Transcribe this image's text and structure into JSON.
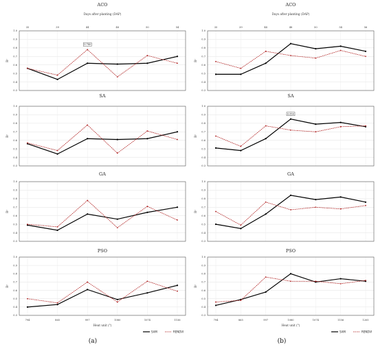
{
  "figure": {
    "left_label": "(a)",
    "right_label": "(b)",
    "top_axis_label": "Days after planting (DAP)",
    "bottom_axis_label": "Heat unit (°)",
    "y_axis_label": "R²",
    "colors": {
      "SAM": "#000000",
      "RENDVI": "#b02020"
    }
  },
  "chart_data": [
    {
      "type": "line",
      "title": "ACO",
      "column": "left",
      "row": 0,
      "categories": [
        "794",
        "865",
        "997",
        "1080",
        "1074",
        "1156"
      ],
      "x_top": [
        "35",
        "39",
        "44",
        "48",
        "50",
        "54"
      ],
      "ylim": [
        0.3,
        1.0
      ],
      "yticks": [
        "0.3",
        "0.4",
        "0.5",
        "0.6",
        "0.7",
        "0.8",
        "0.9",
        "1.0"
      ],
      "series": [
        {
          "name": "SAM",
          "values": [
            0.56,
            0.43,
            0.62,
            0.61,
            0.62,
            0.7
          ]
        },
        {
          "name": "RENDVI",
          "values": [
            0.56,
            0.48,
            0.78,
            0.46,
            0.71,
            0.62
          ]
        }
      ],
      "annotation": {
        "text": "0.780",
        "series": "RENDVI",
        "index": 2
      },
      "grid": true
    },
    {
      "type": "line",
      "title": "SA",
      "column": "left",
      "row": 1,
      "categories": [
        "794",
        "865",
        "997",
        "1080",
        "1074",
        "1156"
      ],
      "ylim": [
        0.3,
        1.0
      ],
      "yticks": [
        "0.3",
        "0.4",
        "0.5",
        "0.6",
        "0.7",
        "0.8",
        "0.9",
        "1.0"
      ],
      "series": [
        {
          "name": "SAM",
          "values": [
            0.56,
            0.44,
            0.62,
            0.61,
            0.62,
            0.7
          ]
        },
        {
          "name": "RENDVI",
          "values": [
            0.57,
            0.48,
            0.78,
            0.45,
            0.71,
            0.61
          ]
        }
      ],
      "grid": true
    },
    {
      "type": "line",
      "title": "GA",
      "column": "left",
      "row": 2,
      "categories": [
        "794",
        "865",
        "997",
        "1080",
        "1074",
        "1156"
      ],
      "ylim": [
        0.3,
        1.0
      ],
      "yticks": [
        "0.3",
        "0.4",
        "0.5",
        "0.6",
        "0.7",
        "0.8",
        "0.9",
        "1.0"
      ],
      "series": [
        {
          "name": "SAM",
          "values": [
            0.49,
            0.43,
            0.62,
            0.56,
            0.64,
            0.7
          ]
        },
        {
          "name": "RENDVI",
          "values": [
            0.5,
            0.47,
            0.78,
            0.46,
            0.71,
            0.55
          ]
        }
      ],
      "grid": true
    },
    {
      "type": "line",
      "title": "PSO",
      "column": "left",
      "row": 3,
      "categories": [
        "794",
        "865",
        "997",
        "1080",
        "1074",
        "1156"
      ],
      "ylim": [
        0.3,
        1.0
      ],
      "yticks": [
        "0.3",
        "0.4",
        "0.5",
        "0.6",
        "0.7",
        "0.8",
        "0.9",
        "1.0"
      ],
      "series": [
        {
          "name": "SAM",
          "values": [
            0.4,
            0.43,
            0.61,
            0.49,
            0.57,
            0.66
          ]
        },
        {
          "name": "RENDVI",
          "values": [
            0.5,
            0.45,
            0.7,
            0.46,
            0.71,
            0.59
          ]
        }
      ],
      "legend": "bottom-right",
      "grid": true
    },
    {
      "type": "line",
      "title": "ACO",
      "column": "right",
      "row": 0,
      "categories": [
        "794",
        "865",
        "997",
        "1080",
        "1074",
        "1156",
        "1205"
      ],
      "x_top": [
        "35",
        "39",
        "44",
        "48",
        "50",
        "54",
        "56"
      ],
      "ylim": [
        0.3,
        1.0
      ],
      "yticks": [
        "0.3",
        "0.4",
        "0.5",
        "0.6",
        "0.7",
        "0.8",
        "0.9",
        "1.0"
      ],
      "series": [
        {
          "name": "SAM",
          "values": [
            0.49,
            0.49,
            0.62,
            0.85,
            0.79,
            0.82,
            0.76
          ]
        },
        {
          "name": "RENDVI",
          "values": [
            0.64,
            0.56,
            0.76,
            0.71,
            0.68,
            0.77,
            0.7
          ]
        }
      ],
      "grid": true
    },
    {
      "type": "line",
      "title": "SA",
      "column": "right",
      "row": 1,
      "categories": [
        "794",
        "865",
        "997",
        "1080",
        "1074",
        "1156",
        "1205"
      ],
      "ylim": [
        0.3,
        1.0
      ],
      "yticks": [
        "0.3",
        "0.4",
        "0.5",
        "0.6",
        "0.7",
        "0.8",
        "0.9",
        "1.0"
      ],
      "series": [
        {
          "name": "SAM",
          "values": [
            0.51,
            0.48,
            0.62,
            0.85,
            0.79,
            0.81,
            0.76
          ]
        },
        {
          "name": "RENDVI",
          "values": [
            0.65,
            0.53,
            0.77,
            0.72,
            0.7,
            0.76,
            0.77
          ]
        }
      ],
      "annotation": {
        "text": "0.850",
        "series": "SAM",
        "index": 3
      },
      "grid": true
    },
    {
      "type": "line",
      "title": "GA",
      "column": "right",
      "row": 2,
      "categories": [
        "794",
        "865",
        "997",
        "1080",
        "1074",
        "1156",
        "1205"
      ],
      "ylim": [
        0.3,
        1.0
      ],
      "yticks": [
        "0.3",
        "0.4",
        "0.5",
        "0.6",
        "0.7",
        "0.8",
        "0.9",
        "1.0"
      ],
      "series": [
        {
          "name": "SAM",
          "values": [
            0.5,
            0.45,
            0.62,
            0.84,
            0.79,
            0.82,
            0.76
          ]
        },
        {
          "name": "RENDVI",
          "values": [
            0.65,
            0.49,
            0.76,
            0.67,
            0.7,
            0.68,
            0.72
          ]
        }
      ],
      "grid": true
    },
    {
      "type": "line",
      "title": "PSO",
      "column": "right",
      "row": 3,
      "categories": [
        "794",
        "865",
        "997",
        "1080",
        "1074",
        "1156",
        "1205"
      ],
      "ylim": [
        0.3,
        1.0
      ],
      "yticks": [
        "0.3",
        "0.4",
        "0.5",
        "0.6",
        "0.7",
        "0.8",
        "0.9",
        "1.0"
      ],
      "series": [
        {
          "name": "SAM",
          "values": [
            0.42,
            0.49,
            0.58,
            0.8,
            0.7,
            0.74,
            0.71
          ]
        },
        {
          "name": "RENDVI",
          "values": [
            0.46,
            0.48,
            0.76,
            0.71,
            0.71,
            0.68,
            0.72
          ]
        }
      ],
      "legend": "bottom-right",
      "grid": true
    }
  ]
}
